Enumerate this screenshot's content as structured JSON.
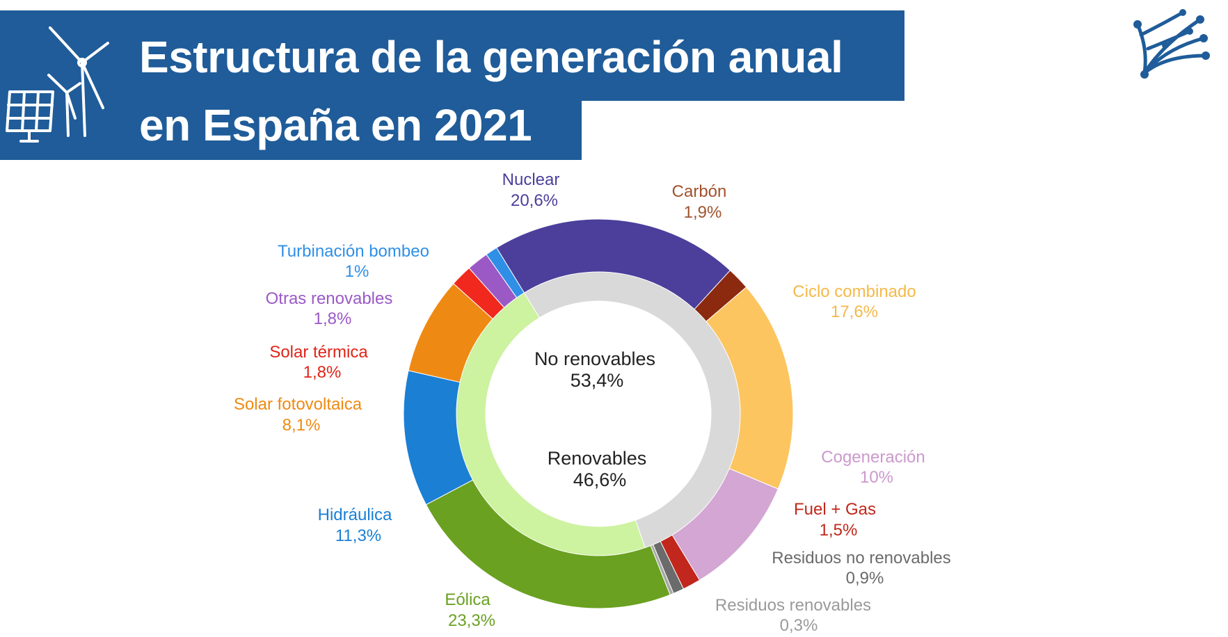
{
  "header": {
    "title_line1": "Estructura de la generación anual",
    "title_line2": "en España en 2021"
  },
  "icons": {
    "emblem": "wind-turbine-solar-panel-icon",
    "logo": "network-tree-logo-icon"
  },
  "colors": {
    "banner": "#1f5c99",
    "logo": "#1f5c99"
  },
  "chart_data": {
    "type": "pie",
    "subtype": "nested-donut",
    "title": "Estructura de la generación anual en España en 2021",
    "outer_ring": [
      {
        "name": "Nuclear",
        "value": 20.6,
        "label": "20,6%",
        "color": "#4b3f9b",
        "text_color": "#4b3f9b"
      },
      {
        "name": "Carbón",
        "value": 1.9,
        "label": "1,9%",
        "color": "#8b2a0f",
        "text_color": "#a0522d"
      },
      {
        "name": "Ciclo combinado",
        "value": 17.6,
        "label": "17,6%",
        "color": "#fdc560",
        "text_color": "#f5b94a"
      },
      {
        "name": "Cogeneración",
        "value": 10,
        "label": "10%",
        "color": "#d3a6d3",
        "text_color": "#cc99cc"
      },
      {
        "name": "Fuel + Gas",
        "value": 1.5,
        "label": "1,5%",
        "color": "#c1271c",
        "text_color": "#c1271c"
      },
      {
        "name": "Residuos no renovables",
        "value": 0.9,
        "label": "0,9%",
        "color": "#6b6b6b",
        "text_color": "#6b6b6b"
      },
      {
        "name": "Residuos renovables",
        "value": 0.3,
        "label": "0,3%",
        "color": "#a8a8a8",
        "text_color": "#9a9a9a"
      },
      {
        "name": "Eólica",
        "value": 23.3,
        "label": "23,3%",
        "color": "#6aa121",
        "text_color": "#6aa121"
      },
      {
        "name": "Hidráulica",
        "value": 11.3,
        "label": "11,3%",
        "color": "#1b7fd4",
        "text_color": "#1b7fd4"
      },
      {
        "name": "Solar fotovoltaica",
        "value": 8.1,
        "label": "8,1%",
        "color": "#ee8a13",
        "text_color": "#ee8a13"
      },
      {
        "name": "Solar térmica",
        "value": 1.8,
        "label": "1,8%",
        "color": "#f0281e",
        "text_color": "#e02418"
      },
      {
        "name": "Otras renovables",
        "value": 1.8,
        "label": "1,8%",
        "color": "#9b59c6",
        "text_color": "#9b59c6"
      },
      {
        "name": "Turbinación bombeo",
        "value": 1,
        "label": "1%",
        "color": "#2f8fe6",
        "text_color": "#2f8fe6"
      }
    ],
    "inner_ring": [
      {
        "name": "No renovables",
        "value": 53.4,
        "label": "53,4%",
        "color": "#d9d9d9"
      },
      {
        "name": "Renovables",
        "value": 46.6,
        "label": "46,6%",
        "color": "#cdf2a0"
      }
    ]
  }
}
